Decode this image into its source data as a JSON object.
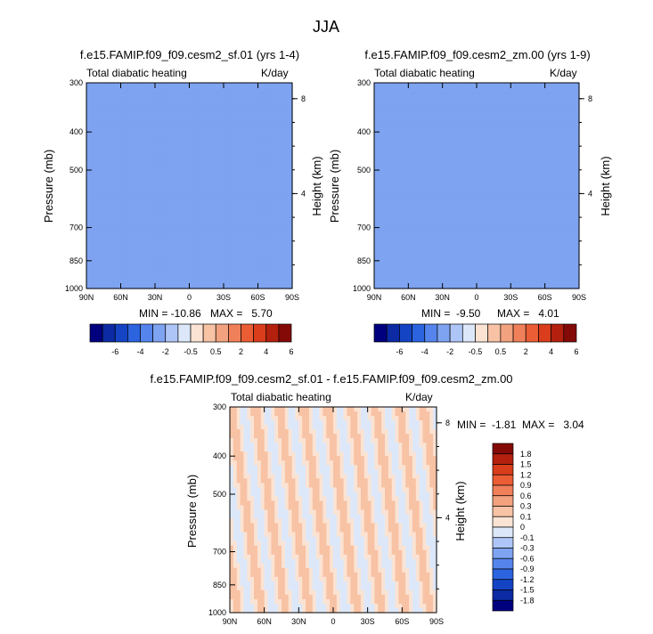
{
  "chart_data": {
    "type": "heatmap",
    "title": "JJA",
    "panels": [
      {
        "title": "f.e15.FAMIP.f09_f09.cesm2_sf.01 (yrs 1-4)",
        "left_label": "Total diabatic heating",
        "right_label": "K/day",
        "ylabel": "Pressure (mb)",
        "y2label": "Height (km)",
        "xticks": [
          "90N",
          "60N",
          "30N",
          "0",
          "30S",
          "60S",
          "90S"
        ],
        "yticks": [
          "300",
          "400",
          "500",
          "700",
          "850",
          "1000"
        ],
        "y2ticks": [
          "8",
          "4"
        ],
        "min_label": "MIN = -10.86",
        "max_label": "MAX =   5.70",
        "xlim": [
          90,
          -90
        ],
        "ylim": [
          1000,
          300
        ],
        "colorbar": {
          "orientation": "horizontal",
          "levels": [
            "-6",
            "-4",
            "-2",
            "-0.5",
            "0.5",
            "2",
            "4",
            "6"
          ]
        }
      },
      {
        "title": "f.e15.FAMIP.f09_f09.cesm2_zm.00 (yrs 1-9)",
        "left_label": "Total diabatic heating",
        "right_label": "K/day",
        "ylabel": "Pressure (mb)",
        "y2label": "Height (km)",
        "xticks": [
          "90N",
          "60N",
          "30N",
          "0",
          "30S",
          "60S",
          "90S"
        ],
        "yticks": [
          "300",
          "400",
          "500",
          "700",
          "850",
          "1000"
        ],
        "y2ticks": [
          "8",
          "4"
        ],
        "min_label": "MIN =  -9.50",
        "max_label": "MAX =   4.01",
        "xlim": [
          90,
          -90
        ],
        "ylim": [
          1000,
          300
        ],
        "colorbar": {
          "orientation": "horizontal",
          "levels": [
            "-6",
            "-4",
            "-2",
            "-0.5",
            "0.5",
            "2",
            "4",
            "6"
          ]
        }
      },
      {
        "title": "f.e15.FAMIP.f09_f09.cesm2_sf.01 - f.e15.FAMIP.f09_f09.cesm2_zm.00",
        "left_label": "Total diabatic heating",
        "right_label": "K/day",
        "ylabel": "Pressure (mb)",
        "y2label": "Height (km)",
        "xticks": [
          "90N",
          "60N",
          "30N",
          "0",
          "30S",
          "60S",
          "90S"
        ],
        "yticks": [
          "300",
          "400",
          "500",
          "700",
          "850",
          "1000"
        ],
        "y2ticks": [
          "8",
          "4"
        ],
        "min_label": "MIN =  -1.81",
        "max_label": "MAX =   3.04",
        "xlim": [
          90,
          -90
        ],
        "ylim": [
          1000,
          300
        ],
        "colorbar": {
          "orientation": "vertical",
          "levels": [
            "1.8",
            "1.5",
            "1.2",
            "0.9",
            "0.6",
            "0.3",
            "0.1",
            "0",
            "-0.1",
            "-0.3",
            "-0.6",
            "-0.9",
            "-1.2",
            "-1.5",
            "-1.8"
          ]
        }
      }
    ],
    "colors": [
      "#00007f",
      "#0b2aa3",
      "#1444c4",
      "#2c63df",
      "#5585ec",
      "#7ea3f0",
      "#aec6f7",
      "#dce8fa",
      "#fbe3d3",
      "#f8c2a4",
      "#f2a27f",
      "#f0805a",
      "#eb5d34",
      "#d93d1b",
      "#b4200e",
      "#840a08"
    ],
    "neutral_color": "#ffffff"
  }
}
